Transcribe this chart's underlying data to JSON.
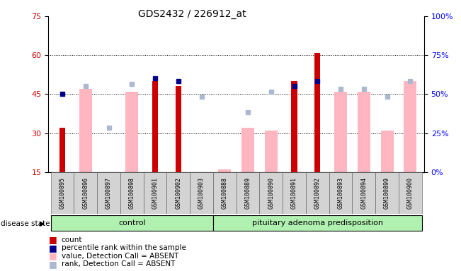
{
  "title": "GDS2432 / 226912_at",
  "samples": [
    "GSM100895",
    "GSM100896",
    "GSM100897",
    "GSM100898",
    "GSM100901",
    "GSM100902",
    "GSM100903",
    "GSM100888",
    "GSM100889",
    "GSM100890",
    "GSM100891",
    "GSM100892",
    "GSM100893",
    "GSM100894",
    "GSM100899",
    "GSM100900"
  ],
  "n_control": 7,
  "n_pituitary": 9,
  "count_values": [
    32,
    null,
    null,
    null,
    50,
    48,
    null,
    null,
    null,
    null,
    50,
    61,
    null,
    null,
    null,
    null
  ],
  "percentile_rank_values": [
    45,
    null,
    null,
    null,
    51,
    50,
    null,
    null,
    null,
    null,
    48,
    50,
    null,
    null,
    null,
    null
  ],
  "value_absent": [
    null,
    47,
    null,
    46,
    null,
    null,
    null,
    16,
    32,
    31,
    null,
    null,
    46,
    46,
    31,
    50
  ],
  "rank_absent": [
    null,
    48,
    32,
    49,
    null,
    null,
    44,
    null,
    38,
    46,
    null,
    null,
    47,
    47,
    44,
    50
  ],
  "ylim_left": [
    15,
    75
  ],
  "ylim_right": [
    0,
    100
  ],
  "yticks_left": [
    15,
    30,
    45,
    60,
    75
  ],
  "ytick_labels_left": [
    "15",
    "30",
    "45",
    "60",
    "75"
  ],
  "yticks_right": [
    0,
    25,
    50,
    75,
    100
  ],
  "ytick_labels_right": [
    "0%",
    "25%",
    "50%",
    "75%",
    "100%"
  ],
  "bar_color_count": "#cc0000",
  "bar_color_percentile": "#00008b",
  "bar_color_value_absent": "#ffb6c1",
  "bar_color_rank_absent": "#aab8d0",
  "group_control_color": "#b0f0b0",
  "group_pituitary_color": "#b0f0b0",
  "group_label_control": "control",
  "group_label_pituitary": "pituitary adenoma predisposition",
  "disease_state_label": "disease state",
  "background_color": "#ffffff",
  "gridline_ticks": [
    30,
    45,
    60
  ],
  "font_size": 8,
  "title_font_size": 10
}
